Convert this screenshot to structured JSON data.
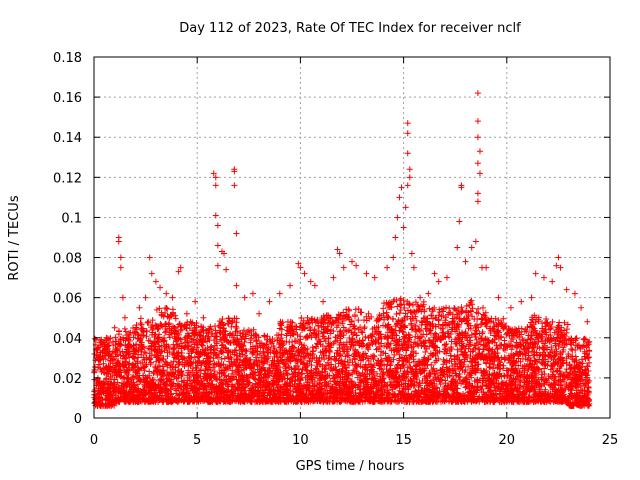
{
  "chart_data": {
    "type": "scatter",
    "title": "Day 112 of 2023, Rate Of TEC Index for receiver nclf",
    "xlabel": "GPS time / hours",
    "ylabel": "ROTI / TECUs",
    "xlim": [
      0,
      25
    ],
    "ylim": [
      0,
      0.18
    ],
    "xticks": [
      "0",
      "5",
      "10",
      "15",
      "20",
      "25"
    ],
    "yticks": [
      "0",
      "0.02",
      "0.04",
      "0.06",
      "0.08",
      "0.1",
      "0.12",
      "0.14",
      "0.16",
      "0.18"
    ],
    "grid": true,
    "marker": "+",
    "color": "#ff0000",
    "series": [
      {
        "values_note_free": true,
        "points": [
          [
            0.1,
            0.03
          ],
          [
            0.2,
            0.018
          ],
          [
            0.3,
            0.036
          ],
          [
            0.4,
            0.024
          ],
          [
            0.6,
            0.04
          ],
          [
            0.8,
            0.028
          ],
          [
            1.0,
            0.045
          ],
          [
            1.2,
            0.09
          ],
          [
            1.2,
            0.088
          ],
          [
            1.3,
            0.08
          ],
          [
            1.3,
            0.075
          ],
          [
            1.4,
            0.06
          ],
          [
            1.5,
            0.05
          ],
          [
            1.7,
            0.035
          ],
          [
            2.0,
            0.042
          ],
          [
            2.2,
            0.055
          ],
          [
            2.5,
            0.06
          ],
          [
            2.7,
            0.08
          ],
          [
            2.8,
            0.072
          ],
          [
            3.0,
            0.068
          ],
          [
            3.2,
            0.065
          ],
          [
            3.5,
            0.062
          ],
          [
            3.8,
            0.06
          ],
          [
            4.1,
            0.073
          ],
          [
            4.2,
            0.075
          ],
          [
            4.5,
            0.052
          ],
          [
            4.9,
            0.058
          ],
          [
            5.3,
            0.05
          ],
          [
            5.8,
            0.122
          ],
          [
            5.9,
            0.12
          ],
          [
            5.9,
            0.116
          ],
          [
            5.9,
            0.101
          ],
          [
            6.0,
            0.096
          ],
          [
            6.0,
            0.086
          ],
          [
            6.0,
            0.076
          ],
          [
            6.2,
            0.083
          ],
          [
            6.3,
            0.082
          ],
          [
            6.4,
            0.074
          ],
          [
            6.8,
            0.124
          ],
          [
            6.8,
            0.123
          ],
          [
            6.8,
            0.116
          ],
          [
            6.9,
            0.092
          ],
          [
            6.9,
            0.066
          ],
          [
            7.3,
            0.06
          ],
          [
            7.7,
            0.062
          ],
          [
            8.0,
            0.052
          ],
          [
            8.5,
            0.058
          ],
          [
            9.0,
            0.062
          ],
          [
            9.5,
            0.066
          ],
          [
            9.9,
            0.077
          ],
          [
            10.0,
            0.075
          ],
          [
            10.2,
            0.072
          ],
          [
            10.5,
            0.068
          ],
          [
            10.7,
            0.066
          ],
          [
            11.1,
            0.058
          ],
          [
            11.6,
            0.07
          ],
          [
            11.8,
            0.084
          ],
          [
            11.9,
            0.082
          ],
          [
            12.1,
            0.075
          ],
          [
            12.5,
            0.078
          ],
          [
            12.7,
            0.076
          ],
          [
            13.2,
            0.072
          ],
          [
            13.6,
            0.07
          ],
          [
            14.2,
            0.075
          ],
          [
            14.5,
            0.08
          ],
          [
            14.6,
            0.09
          ],
          [
            14.7,
            0.1
          ],
          [
            14.8,
            0.11
          ],
          [
            14.9,
            0.115
          ],
          [
            15.0,
            0.095
          ],
          [
            15.2,
            0.147
          ],
          [
            15.2,
            0.142
          ],
          [
            15.2,
            0.132
          ],
          [
            15.3,
            0.124
          ],
          [
            15.3,
            0.12
          ],
          [
            15.2,
            0.116
          ],
          [
            15.1,
            0.105
          ],
          [
            15.4,
            0.082
          ],
          [
            15.5,
            0.075
          ],
          [
            15.8,
            0.06
          ],
          [
            16.2,
            0.062
          ],
          [
            16.5,
            0.072
          ],
          [
            16.7,
            0.068
          ],
          [
            17.1,
            0.07
          ],
          [
            17.6,
            0.085
          ],
          [
            17.7,
            0.098
          ],
          [
            17.8,
            0.116
          ],
          [
            17.8,
            0.115
          ],
          [
            18.0,
            0.078
          ],
          [
            18.3,
            0.085
          ],
          [
            18.5,
            0.088
          ],
          [
            18.6,
            0.162
          ],
          [
            18.6,
            0.148
          ],
          [
            18.6,
            0.14
          ],
          [
            18.7,
            0.133
          ],
          [
            18.6,
            0.127
          ],
          [
            18.7,
            0.122
          ],
          [
            18.6,
            0.112
          ],
          [
            18.6,
            0.108
          ],
          [
            18.8,
            0.075
          ],
          [
            19.0,
            0.075
          ],
          [
            19.6,
            0.06
          ],
          [
            20.2,
            0.055
          ],
          [
            20.7,
            0.058
          ],
          [
            21.2,
            0.06
          ],
          [
            21.4,
            0.072
          ],
          [
            21.8,
            0.07
          ],
          [
            22.2,
            0.068
          ],
          [
            22.4,
            0.076
          ],
          [
            22.5,
            0.08
          ],
          [
            22.6,
            0.075
          ],
          [
            22.9,
            0.064
          ],
          [
            23.3,
            0.062
          ],
          [
            23.6,
            0.055
          ],
          [
            23.9,
            0.048
          ]
        ]
      }
    ],
    "dense_band": [
      {
        "x0": 0,
        "x1": 1,
        "ymin": 0.006,
        "ymax": 0.04
      },
      {
        "x0": 1,
        "x1": 2,
        "ymin": 0.008,
        "ymax": 0.045
      },
      {
        "x0": 2,
        "x1": 3,
        "ymin": 0.008,
        "ymax": 0.05
      },
      {
        "x0": 3,
        "x1": 4,
        "ymin": 0.008,
        "ymax": 0.055
      },
      {
        "x0": 4,
        "x1": 5,
        "ymin": 0.008,
        "ymax": 0.048
      },
      {
        "x0": 5,
        "x1": 6,
        "ymin": 0.008,
        "ymax": 0.046
      },
      {
        "x0": 6,
        "x1": 7,
        "ymin": 0.008,
        "ymax": 0.05
      },
      {
        "x0": 7,
        "x1": 8,
        "ymin": 0.008,
        "ymax": 0.044
      },
      {
        "x0": 8,
        "x1": 9,
        "ymin": 0.008,
        "ymax": 0.042
      },
      {
        "x0": 9,
        "x1": 10,
        "ymin": 0.008,
        "ymax": 0.048
      },
      {
        "x0": 10,
        "x1": 11,
        "ymin": 0.008,
        "ymax": 0.05
      },
      {
        "x0": 11,
        "x1": 12,
        "ymin": 0.008,
        "ymax": 0.052
      },
      {
        "x0": 12,
        "x1": 13,
        "ymin": 0.008,
        "ymax": 0.055
      },
      {
        "x0": 13,
        "x1": 14,
        "ymin": 0.008,
        "ymax": 0.052
      },
      {
        "x0": 14,
        "x1": 15,
        "ymin": 0.008,
        "ymax": 0.06
      },
      {
        "x0": 15,
        "x1": 16,
        "ymin": 0.008,
        "ymax": 0.058
      },
      {
        "x0": 16,
        "x1": 17,
        "ymin": 0.008,
        "ymax": 0.055
      },
      {
        "x0": 17,
        "x1": 18,
        "ymin": 0.008,
        "ymax": 0.056
      },
      {
        "x0": 18,
        "x1": 19,
        "ymin": 0.008,
        "ymax": 0.06
      },
      {
        "x0": 19,
        "x1": 20,
        "ymin": 0.008,
        "ymax": 0.05
      },
      {
        "x0": 20,
        "x1": 21,
        "ymin": 0.008,
        "ymax": 0.046
      },
      {
        "x0": 21,
        "x1": 22,
        "ymin": 0.008,
        "ymax": 0.052
      },
      {
        "x0": 22,
        "x1": 23,
        "ymin": 0.008,
        "ymax": 0.048
      },
      {
        "x0": 23,
        "x1": 24,
        "ymin": 0.006,
        "ymax": 0.04
      }
    ]
  }
}
